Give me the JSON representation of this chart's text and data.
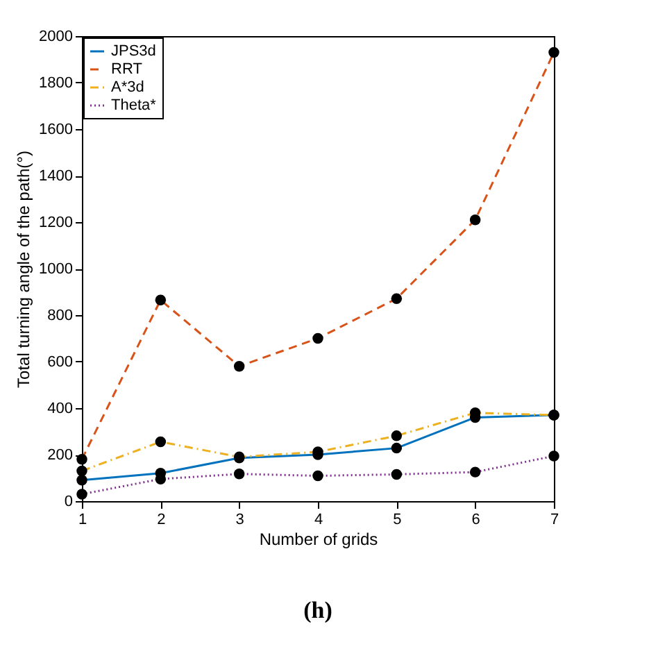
{
  "chart_data": {
    "type": "line",
    "xlabel": "Number of grids",
    "ylabel": "Total turning angle of the path(°)",
    "annotations": [
      "(h)"
    ],
    "x": [
      1,
      2,
      3,
      4,
      5,
      6,
      7
    ],
    "xlim": [
      1,
      7
    ],
    "xticks": [
      1,
      2,
      3,
      4,
      5,
      6,
      7
    ],
    "ylim": [
      0,
      2000
    ],
    "yticks": [
      0,
      200,
      400,
      600,
      800,
      1000,
      1200,
      1400,
      1600,
      1800,
      2000
    ],
    "grid": false,
    "legend": "top left",
    "marker": "circle",
    "series": [
      {
        "name": "JPS3d",
        "color": "#0072bd",
        "line_style": "solid",
        "values": [
          90,
          120,
          186,
          200,
          228,
          360,
          370
        ]
      },
      {
        "name": "RRT",
        "color": "#d95319",
        "line_style": "dashed",
        "values": [
          180,
          865,
          580,
          700,
          871,
          1210,
          1930
        ]
      },
      {
        "name": "A*3d",
        "color": "#edb120",
        "line_style": "dashdot",
        "values": [
          130,
          255,
          190,
          212,
          281,
          380,
          370
        ]
      },
      {
        "name": "Theta*",
        "color": "#7e2f8e",
        "line_style": "dotted",
        "values": [
          30,
          95,
          117,
          109,
          115,
          125,
          194
        ]
      }
    ]
  }
}
